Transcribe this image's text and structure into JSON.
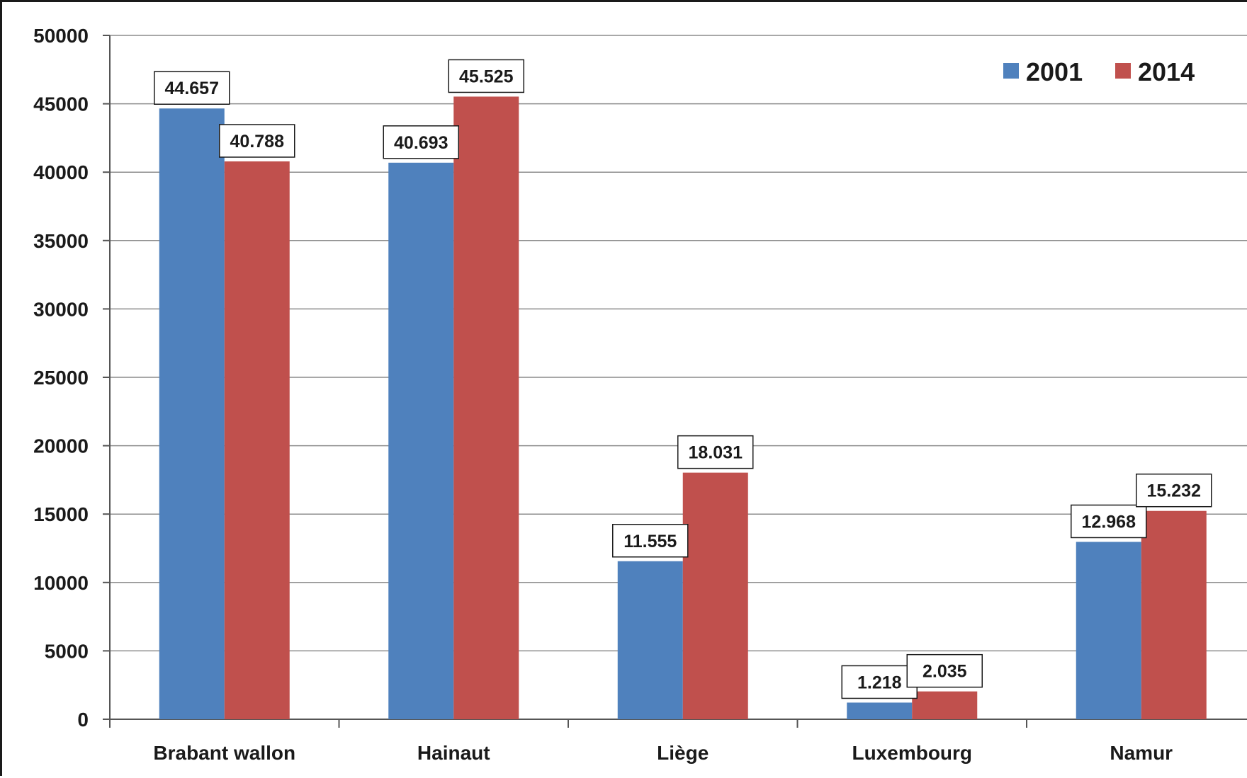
{
  "chart_data": {
    "type": "bar",
    "categories": [
      "Brabant wallon",
      "Hainaut",
      "Liège",
      "Luxembourg",
      "Namur"
    ],
    "series": [
      {
        "name": "2001",
        "color": "#4F81BD",
        "values": [
          44657,
          40693,
          11555,
          1218,
          12968
        ],
        "labels": [
          "44.657",
          "40.693",
          "11.555",
          "1.218",
          "12.968"
        ]
      },
      {
        "name": "2014",
        "color": "#C0504D",
        "values": [
          40788,
          45525,
          18031,
          2035,
          15232
        ],
        "labels": [
          "40.788",
          "45.525",
          "18.031",
          "2.035",
          "15.232"
        ]
      }
    ],
    "ylim": [
      0,
      50000
    ],
    "yticks": [
      0,
      5000,
      10000,
      15000,
      20000,
      25000,
      30000,
      35000,
      40000,
      45000,
      50000
    ],
    "ytick_labels": [
      "0",
      "5000",
      "10000",
      "15000",
      "20000",
      "25000",
      "30000",
      "35000",
      "40000",
      "45000",
      "50000"
    ],
    "grid": true,
    "legend_position": "top-right",
    "title": "",
    "xlabel": "",
    "ylabel": ""
  }
}
